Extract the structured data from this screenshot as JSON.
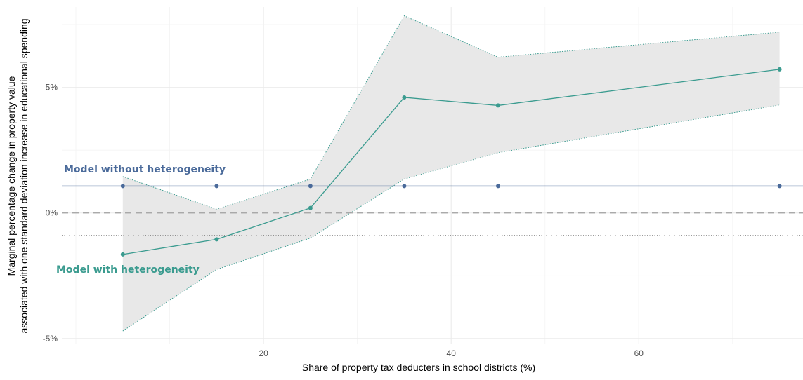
{
  "chart_data": {
    "type": "line",
    "xlabel": "Share of property tax deducters in school districts (%)",
    "ylabel_lines": [
      "Marginal percentage change in property value",
      "associated with one standard deviation increase in educational spending"
    ],
    "x_ticks": [
      20,
      40,
      60
    ],
    "x_tick_labels": [
      "20",
      "40",
      "60"
    ],
    "y_ticks": [
      -5,
      0,
      5
    ],
    "y_tick_labels": [
      "-5%",
      "0%",
      "5%"
    ],
    "xlim": [
      -1.5,
      77.5
    ],
    "ylim": [
      -5.2,
      8.2
    ],
    "grid": true,
    "series": [
      {
        "name": "Model with heterogeneity",
        "color": "#3a9b8f",
        "x": [
          5,
          15,
          25,
          35,
          45,
          75
        ],
        "y": [
          -1.65,
          -1.05,
          0.2,
          4.6,
          4.28,
          5.72
        ],
        "lower": [
          -4.7,
          -2.25,
          -1.0,
          1.35,
          2.4,
          4.3
        ],
        "upper": [
          1.45,
          0.15,
          1.35,
          7.85,
          6.2,
          7.2
        ]
      },
      {
        "name": "Model without heterogeneity",
        "color": "#4a6a9a",
        "x": [
          5,
          15,
          25,
          35,
          45,
          75
        ],
        "y": [
          1.07,
          1.07,
          1.07,
          1.07,
          1.07,
          1.07
        ],
        "ci": [
          -0.9,
          3.02
        ]
      }
    ],
    "reference_line": 0,
    "annotations": [
      {
        "text": "Model without heterogeneity",
        "color": "#4a6a9a"
      },
      {
        "text": "Model with heterogeneity",
        "color": "#3a9b8f"
      }
    ],
    "band_color": "#e8e8e8"
  }
}
